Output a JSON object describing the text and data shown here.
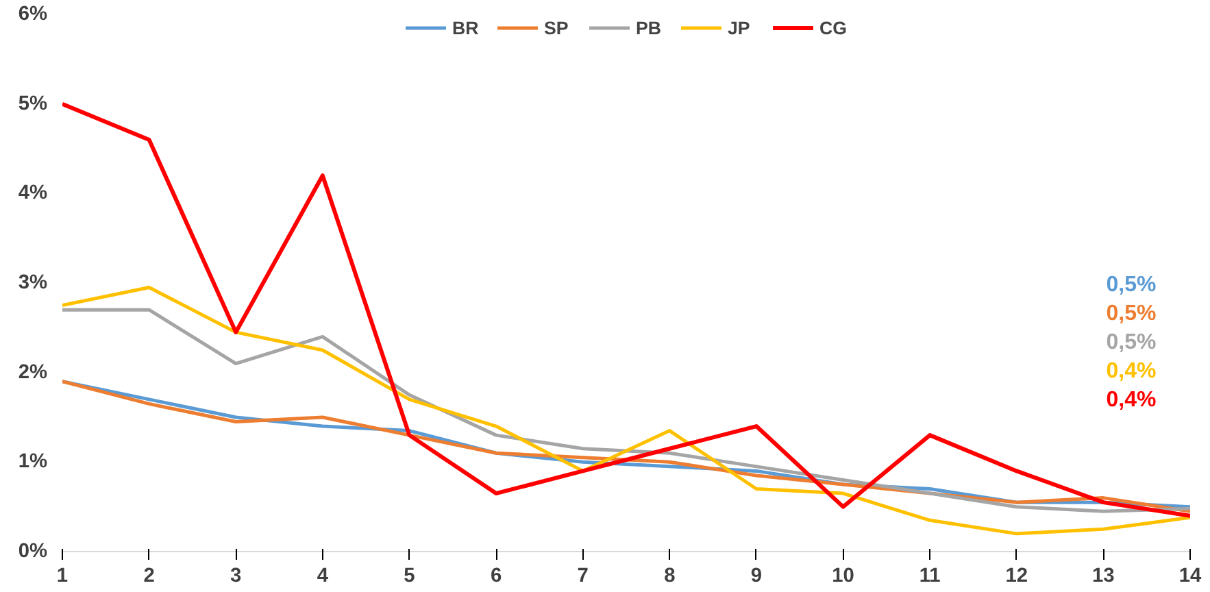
{
  "chart_data": {
    "type": "line",
    "x": [
      1,
      2,
      3,
      4,
      5,
      6,
      7,
      8,
      9,
      10,
      11,
      12,
      13,
      14
    ],
    "xlim": [
      1,
      14
    ],
    "xticks": [
      1,
      2,
      3,
      4,
      5,
      6,
      7,
      8,
      9,
      10,
      11,
      12,
      13,
      14
    ],
    "ylim": [
      0,
      6
    ],
    "yticks": [
      {
        "value": 0,
        "label": "0%"
      },
      {
        "value": 1,
        "label": "1%"
      },
      {
        "value": 2,
        "label": "2%"
      },
      {
        "value": 3,
        "label": "3%"
      },
      {
        "value": 4,
        "label": "4%"
      },
      {
        "value": 5,
        "label": "5%"
      },
      {
        "value": 6,
        "label": "6%"
      }
    ],
    "grid": false,
    "legend": "top",
    "line_style": "solid",
    "marker": "none",
    "series": [
      {
        "name": "BR",
        "color": "#5b9bd5",
        "values": [
          1.9,
          1.7,
          1.5,
          1.4,
          1.35,
          1.1,
          1.0,
          0.95,
          0.9,
          0.75,
          0.7,
          0.55,
          0.55,
          0.5
        ]
      },
      {
        "name": "SP",
        "color": "#ed7d31",
        "values": [
          1.9,
          1.65,
          1.45,
          1.5,
          1.3,
          1.1,
          1.05,
          1.0,
          0.85,
          0.75,
          0.65,
          0.55,
          0.6,
          0.45
        ]
      },
      {
        "name": "PB",
        "color": "#a5a5a5",
        "values": [
          2.7,
          2.7,
          2.1,
          2.4,
          1.75,
          1.3,
          1.15,
          1.1,
          0.95,
          0.8,
          0.65,
          0.5,
          0.45,
          0.48
        ]
      },
      {
        "name": "JP",
        "color": "#ffc000",
        "values": [
          2.75,
          2.95,
          2.45,
          2.25,
          1.7,
          1.4,
          0.9,
          1.35,
          0.7,
          0.65,
          0.35,
          0.2,
          0.25,
          0.38
        ]
      },
      {
        "name": "CG",
        "color": "#ff0000",
        "values": [
          5.0,
          4.6,
          2.45,
          4.2,
          1.3,
          0.65,
          0.9,
          1.15,
          1.4,
          0.5,
          1.3,
          0.9,
          0.55,
          0.4
        ]
      }
    ],
    "annotations": [
      "0,5%",
      "0,5%",
      "0,5%",
      "0,4%",
      "0,4%"
    ]
  }
}
